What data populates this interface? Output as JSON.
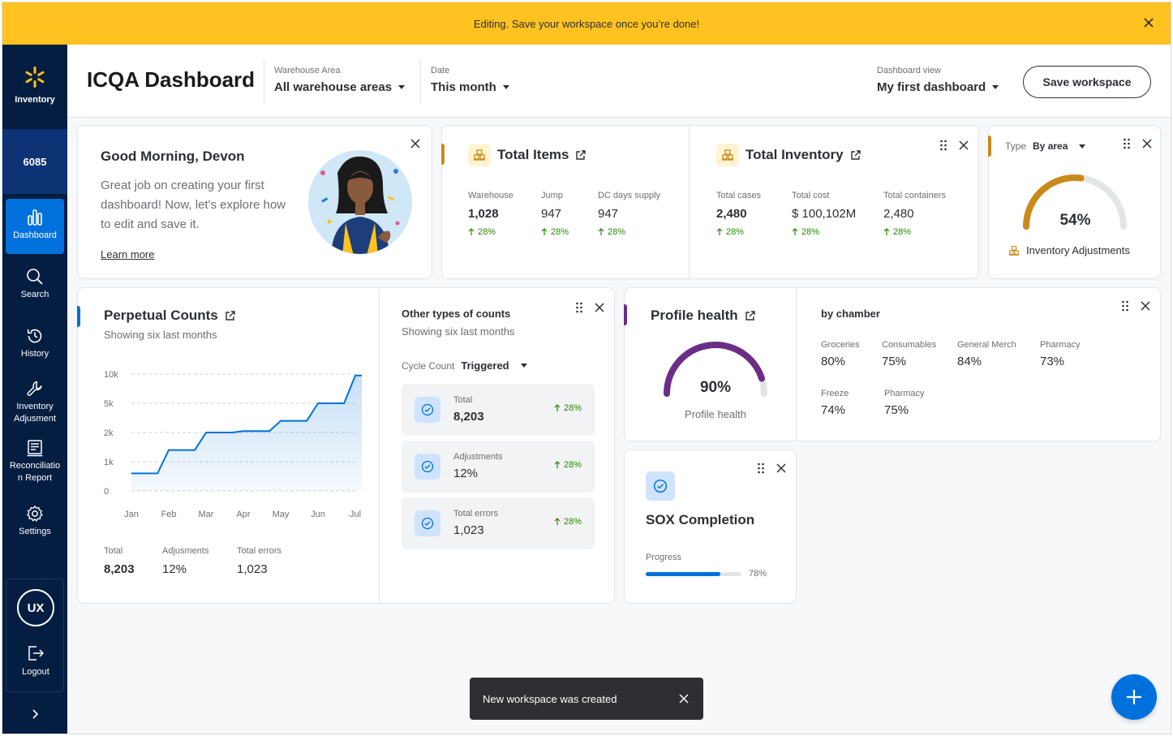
{
  "banner": {
    "text": "Editing. Save your workspace once you’re done!"
  },
  "sidebar": {
    "brand_label": "Inventory",
    "store_number": "6085",
    "items": [
      {
        "label": "Dashboard",
        "icon": "bar-chart-icon"
      },
      {
        "label": "Search",
        "icon": "search-icon"
      },
      {
        "label": "History",
        "icon": "history-icon"
      },
      {
        "label": "Inventory Adjusment",
        "icon": "wrench-icon"
      },
      {
        "label": "Reconciliation Report",
        "icon": "report-icon"
      },
      {
        "label": "Settings",
        "icon": "gear-icon"
      }
    ],
    "user_initials": "UX",
    "logout_label": "Logout"
  },
  "header": {
    "title": "ICQA Dashboard",
    "warehouse": {
      "label": "Warehouse Area",
      "value": "All warehouse areas"
    },
    "date": {
      "label": "Date",
      "value": "This month"
    },
    "dashboard_view": {
      "label": "Dashboard view",
      "value": "My first dashboard"
    },
    "save_label": "Save workspace"
  },
  "welcome": {
    "title": "Good Morning, Devon",
    "body": "Great job on creating your first dashboard! Now, let's explore how to edit and save it.",
    "link": "Learn more"
  },
  "total_items": {
    "title": "Total Items",
    "metrics": [
      {
        "label": "Warehouse",
        "value": "1,028",
        "trend": "28%"
      },
      {
        "label": "Jump",
        "value": "947",
        "trend": "28%"
      },
      {
        "label": "DC days supply",
        "value": "947",
        "trend": "28%"
      }
    ]
  },
  "total_inventory": {
    "title": "Total Inventory",
    "metrics": [
      {
        "label": "Total cases",
        "value": "2,480",
        "trend": "28%"
      },
      {
        "label": "Total cost",
        "value": "$ 100,102M",
        "trend": "28%"
      },
      {
        "label": "Total containers",
        "value": "2,480",
        "trend": "28%"
      }
    ]
  },
  "adjustments": {
    "type_label": "Type",
    "type_value": "By area",
    "percent": "54%",
    "percent_value": 0.54,
    "caption": "Inventory Adjustments",
    "color": "#c98a1b"
  },
  "perpetual": {
    "title": "Perpetual Counts",
    "subtitle": "Showing six last months",
    "totals": [
      {
        "label": "Total",
        "value": "8,203"
      },
      {
        "label": "Adjusments",
        "value": "12%"
      },
      {
        "label": "Total errors",
        "value": "1,023"
      }
    ],
    "accent": "#0071dc"
  },
  "chart_data": {
    "type": "area",
    "x": [
      "Jan",
      "Feb",
      "Mar",
      "Apr",
      "May",
      "Jun",
      "Jul"
    ],
    "y_ticks": [
      "0",
      "1k",
      "2k",
      "5k",
      "10k"
    ],
    "series": [
      {
        "points": [
          0.6,
          0.6,
          1.4,
          1.4,
          2.0,
          2.0,
          2.05,
          2.05,
          2.4,
          2.4,
          3.0,
          3.0,
          3.95,
          3.95
        ]
      }
    ],
    "step_x": [
      0,
      0.7,
      1.0,
      1.7,
      2.0,
      2.7,
      3.0,
      3.7,
      4.0,
      4.7,
      5.0,
      5.7,
      6.0,
      6.7
    ],
    "ylabel": "",
    "xlabel": ""
  },
  "other_counts": {
    "title": "Other types of counts",
    "subtitle": "Showing six last months",
    "select_label": "Cycle Count",
    "select_value": "Triggered",
    "rows": [
      {
        "label": "Total",
        "value": "8,203",
        "trend": "28%",
        "bold": true
      },
      {
        "label": "Adjustments",
        "value": "12%",
        "trend": "28%",
        "bold": false
      },
      {
        "label": "Total errors",
        "value": "1,023",
        "trend": "28%",
        "bold": false
      }
    ]
  },
  "profile_health": {
    "title": "Profile health",
    "percent": "90%",
    "percent_value": 0.9,
    "caption": "Profile health",
    "color": "#6b2d86",
    "chamber_title": "by chamber",
    "chambers": [
      {
        "label": "Groceries",
        "value": "80%"
      },
      {
        "label": "Consumables",
        "value": "75%"
      },
      {
        "label": "General Merch",
        "value": "84%"
      },
      {
        "label": "Pharmacy",
        "value": "73%"
      },
      {
        "label": "Freeze",
        "value": "74%"
      },
      {
        "label": "Pharmacy",
        "value": "75%"
      }
    ]
  },
  "sox": {
    "title": "SOX Completion",
    "progress_label": "Progress",
    "progress_text": "78%",
    "progress_value": 0.78
  },
  "toast": {
    "text": "New workspace was created"
  },
  "colors": {
    "brand_blue": "#0071dc",
    "navy": "#041e42",
    "banner": "#ffc220",
    "trend_green": "#2a8703"
  }
}
